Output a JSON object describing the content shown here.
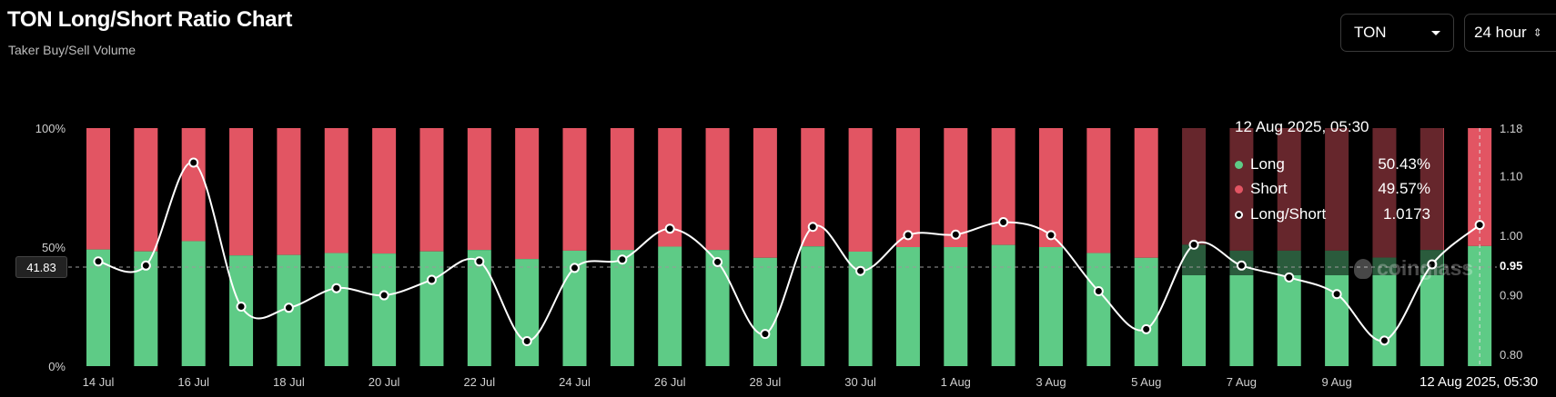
{
  "header": {
    "title": "TON Long/Short Ratio Chart",
    "subtitle": "Taker Buy/Sell Volume"
  },
  "controls": {
    "coin": "TON",
    "period": "24 hour"
  },
  "tooltip": {
    "time": "12 Aug 2025, 05:30",
    "rows": [
      {
        "label": "Long",
        "value": "50.43%",
        "color": "#5ecb86"
      },
      {
        "label": "Short",
        "value": "49.57%",
        "color": "#e25563"
      },
      {
        "label": "Long/Short",
        "value": "1.0173",
        "color": "#ffffff"
      }
    ]
  },
  "crosshair": {
    "left_label": "41.83",
    "right_label": "0.95",
    "x_label": "12 Aug 2025, 05:30"
  },
  "watermark": "coinglass",
  "colors": {
    "long": "#5ecb86",
    "short": "#e25563",
    "ratio_line": "#ffffff",
    "grid": "#2a2a2a"
  },
  "chart_data": {
    "type": "bar",
    "stacked": true,
    "percent_stacked": true,
    "x": [
      "14 Jul",
      "15 Jul",
      "16 Jul",
      "17 Jul",
      "18 Jul",
      "19 Jul",
      "20 Jul",
      "21 Jul",
      "22 Jul",
      "23 Jul",
      "24 Jul",
      "25 Jul",
      "26 Jul",
      "27 Jul",
      "28 Jul",
      "29 Jul",
      "30 Jul",
      "31 Jul",
      "1 Aug",
      "2 Aug",
      "3 Aug",
      "4 Aug",
      "5 Aug",
      "6 Aug",
      "7 Aug",
      "8 Aug",
      "9 Aug",
      "10 Aug",
      "11 Aug",
      "12 Aug"
    ],
    "x_tick_labels": [
      "14 Jul",
      "16 Jul",
      "18 Jul",
      "20 Jul",
      "22 Jul",
      "24 Jul",
      "26 Jul",
      "28 Jul",
      "30 Jul",
      "1 Aug",
      "3 Aug",
      "5 Aug",
      "7 Aug",
      "9 Aug"
    ],
    "series": [
      {
        "name": "Long",
        "axis": "left",
        "values": [
          49.0,
          48.2,
          52.5,
          46.5,
          46.7,
          47.5,
          47.3,
          48.2,
          48.8,
          45.0,
          48.5,
          48.8,
          50.2,
          48.8,
          45.5,
          50.3,
          48.1,
          50.0,
          50.0,
          50.9,
          50.0,
          47.5,
          45.5,
          51.0,
          48.5,
          48.5,
          48.5,
          45.6,
          48.8,
          50.43
        ]
      },
      {
        "name": "Short",
        "axis": "left",
        "values": [
          51.0,
          51.8,
          47.5,
          53.5,
          53.3,
          52.5,
          52.7,
          51.8,
          51.2,
          55.0,
          51.5,
          51.2,
          49.8,
          51.2,
          54.5,
          49.7,
          51.9,
          50.0,
          50.0,
          49.1,
          50.0,
          52.5,
          54.5,
          49.0,
          51.5,
          51.5,
          51.5,
          54.4,
          51.2,
          49.57
        ]
      },
      {
        "name": "Long/Short",
        "axis": "right",
        "type": "line",
        "values": [
          0.956,
          0.949,
          1.122,
          0.88,
          0.878,
          0.911,
          0.899,
          0.925,
          0.956,
          0.822,
          0.945,
          0.959,
          1.011,
          0.955,
          0.834,
          1.014,
          0.94,
          1.0,
          1.001,
          1.022,
          1.0,
          0.906,
          0.842,
          0.984,
          0.949,
          0.929,
          0.901,
          0.823,
          0.951,
          1.0173
        ]
      }
    ],
    "y_left": {
      "ticks": [
        "0%",
        "50%",
        "100%"
      ],
      "range": [
        0,
        100
      ]
    },
    "y_right": {
      "ticks": [
        "0.80",
        "0.90",
        "0.95",
        "1.00",
        "1.10",
        "1.18"
      ],
      "range": [
        0.78,
        1.18
      ]
    },
    "grid": false,
    "legend": "tooltip"
  }
}
